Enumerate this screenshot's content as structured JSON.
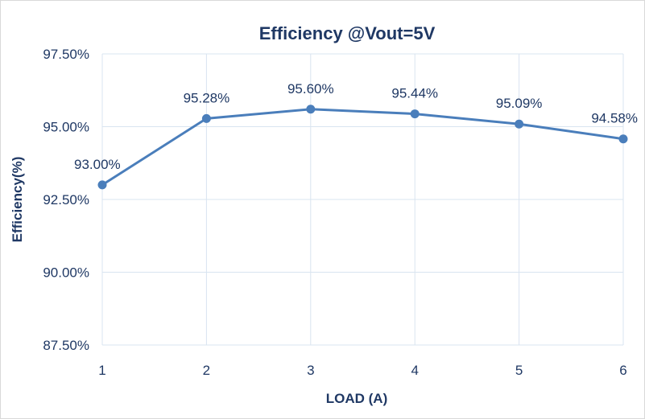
{
  "chart_data": {
    "type": "line",
    "title": "Efficiency @Vout=5V",
    "xlabel": "LOAD (A)",
    "ylabel": "Efficiency(%)",
    "x": [
      1,
      2,
      3,
      4,
      5,
      6
    ],
    "x_tick_labels": [
      "1",
      "2",
      "3",
      "4",
      "5",
      "6"
    ],
    "y_tick_labels": [
      "87.50%",
      "90.00%",
      "92.50%",
      "95.00%",
      "97.50%"
    ],
    "y_ticks": [
      87.5,
      90.0,
      92.5,
      95.0,
      97.5
    ],
    "ylim": [
      87.5,
      97.5
    ],
    "xlim": [
      1,
      6
    ],
    "series": [
      {
        "values": [
          93.0,
          95.28,
          95.6,
          95.44,
          95.09,
          94.58
        ],
        "data_labels": [
          "93.00%",
          "95.28%",
          "95.60%",
          "95.44%",
          "95.09%",
          "94.58%"
        ],
        "color": "#4a7ebb"
      }
    ],
    "grid": true,
    "legend": "none"
  }
}
